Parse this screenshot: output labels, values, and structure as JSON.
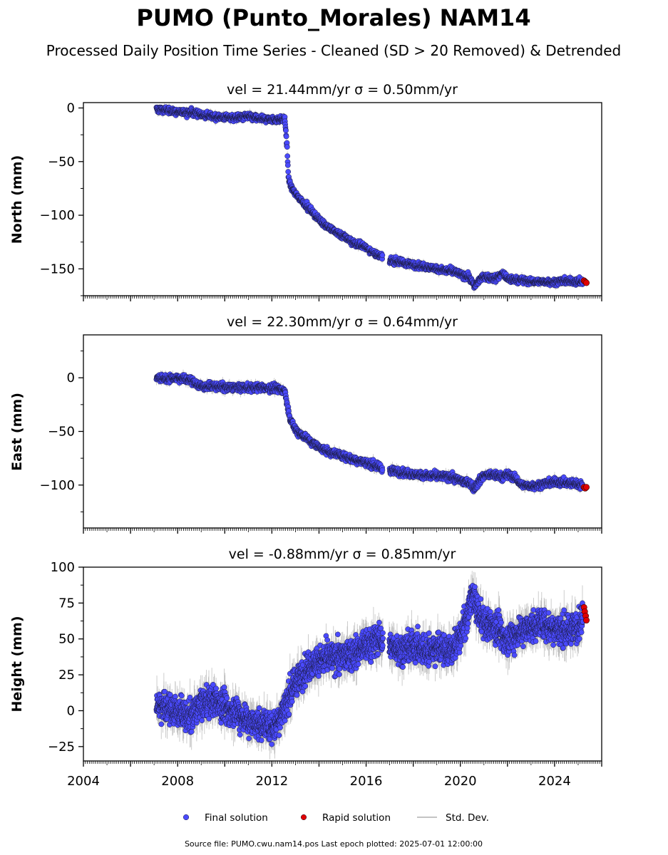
{
  "title": "PUMO (Punto_Morales) NAM14",
  "subtitle": "Processed Daily Position Time Series - Cleaned (SD > 20 Removed) & Detrended",
  "footer": "Source file: PUMO.cwu.nam14.pos  Last epoch plotted: 2025-07-01 12:00:00",
  "legend": {
    "final": "Final solution",
    "rapid": "Rapid solution",
    "std": "Std. Dev."
  },
  "colors": {
    "final": "#4a4aff",
    "final_edge": "#1a1a3a",
    "rapid": "#e00000",
    "std": "#b0b0b0"
  },
  "chart_data": [
    {
      "type": "scatter",
      "title": "vel = 21.44mm/yr   σ = 0.50mm/yr",
      "ylabel": "North (mm)",
      "ylim": [
        -175,
        5
      ],
      "yticks": [
        0,
        -50,
        -100,
        -150
      ],
      "xlim": [
        2004,
        2026
      ],
      "grid": false,
      "series": [
        {
          "name": "Final solution",
          "x": [
            2007.1,
            2007.5,
            2008.0,
            2008.5,
            2009.0,
            2009.5,
            2010.0,
            2010.5,
            2011.0,
            2011.5,
            2012.0,
            2012.3,
            2012.55,
            2012.65,
            2012.7,
            2012.8,
            2013.0,
            2013.5,
            2014.0,
            2014.5,
            2015.0,
            2015.5,
            2016.0,
            2016.5,
            2016.7,
            2017.0,
            2017.5,
            2018.0,
            2018.5,
            2019.0,
            2019.5,
            2019.8,
            2020.0,
            2020.4,
            2020.6,
            2020.8,
            2021.0,
            2021.5,
            2021.8,
            2022.0,
            2022.5,
            2023.0,
            2023.5,
            2024.0,
            2024.5,
            2025.0,
            2025.2
          ],
          "y": [
            -1,
            -2,
            -4,
            -4,
            -6,
            -8,
            -9,
            -9,
            -8,
            -10,
            -11,
            -11,
            -10,
            -38,
            -65,
            -73,
            -80,
            -92,
            -104,
            -113,
            -119,
            -126,
            -130,
            -138,
            -139,
            -142,
            -144,
            -146,
            -148,
            -150,
            -152,
            -153,
            -155,
            -158,
            -167,
            -160,
            -157,
            -159,
            -154,
            -160,
            -160,
            -162,
            -162,
            -162,
            -161,
            -162,
            -162
          ]
        },
        {
          "name": "Rapid solution",
          "x": [
            2025.25,
            2025.3,
            2025.35
          ],
          "y": [
            -161,
            -162,
            -163
          ]
        }
      ]
    },
    {
      "type": "scatter",
      "title": "vel = 22.30mm/yr   σ = 0.64mm/yr",
      "ylabel": "East (mm)",
      "ylim": [
        -140,
        40
      ],
      "yticks": [
        0,
        -50,
        -100
      ],
      "xlim": [
        2004,
        2026
      ],
      "grid": false,
      "series": [
        {
          "name": "Final solution",
          "x": [
            2007.1,
            2007.5,
            2008.0,
            2008.5,
            2009.0,
            2009.5,
            2010.0,
            2010.5,
            2011.0,
            2011.5,
            2012.0,
            2012.3,
            2012.55,
            2012.65,
            2012.8,
            2013.0,
            2013.5,
            2014.0,
            2014.5,
            2015.0,
            2015.5,
            2016.0,
            2016.5,
            2016.7,
            2017.0,
            2017.5,
            2018.0,
            2018.5,
            2019.0,
            2019.5,
            2019.8,
            2020.0,
            2020.4,
            2020.6,
            2020.8,
            2021.0,
            2021.5,
            2021.8,
            2022.0,
            2022.3,
            2022.6,
            2023.0,
            2023.5,
            2024.0,
            2024.5,
            2025.0,
            2025.2
          ],
          "y": [
            0,
            -1,
            0,
            -2,
            -8,
            -8,
            -9,
            -9,
            -9,
            -9,
            -10,
            -10,
            -11,
            -25,
            -40,
            -48,
            -57,
            -65,
            -70,
            -73,
            -76,
            -79,
            -83,
            -85,
            -86,
            -88,
            -90,
            -91,
            -92,
            -92,
            -94,
            -96,
            -98,
            -103,
            -96,
            -91,
            -91,
            -92,
            -90,
            -93,
            -100,
            -101,
            -99,
            -97,
            -98,
            -99,
            -101
          ]
        },
        {
          "name": "Rapid solution",
          "x": [
            2025.25,
            2025.3,
            2025.35
          ],
          "y": [
            -102,
            -103,
            -102
          ]
        }
      ]
    },
    {
      "type": "scatter",
      "title": "vel = -0.88mm/yr   σ = 0.85mm/yr",
      "ylabel": "Height (mm)",
      "ylim": [
        -35,
        100
      ],
      "yticks": [
        100,
        75,
        50,
        25,
        0,
        -25
      ],
      "xlim": [
        2004,
        2026
      ],
      "xticks": [
        2004,
        2008,
        2012,
        2016,
        2020,
        2024
      ],
      "grid": false,
      "series": [
        {
          "name": "Final solution",
          "x": [
            2007.1,
            2007.5,
            2008.0,
            2008.5,
            2009.0,
            2009.5,
            2010.0,
            2010.5,
            2011.0,
            2011.5,
            2012.0,
            2012.3,
            2012.6,
            2013.0,
            2013.5,
            2014.0,
            2014.5,
            2015.0,
            2015.5,
            2016.0,
            2016.5,
            2017.0,
            2017.5,
            2018.0,
            2018.5,
            2019.0,
            2019.5,
            2019.8,
            2020.0,
            2020.3,
            2020.5,
            2020.8,
            2021.0,
            2021.5,
            2022.0,
            2022.5,
            2023.0,
            2023.5,
            2024.0,
            2024.5,
            2025.0,
            2025.2
          ],
          "y": [
            5,
            2,
            0,
            -5,
            5,
            8,
            2,
            0,
            -8,
            -10,
            -12,
            -5,
            5,
            20,
            30,
            35,
            37,
            38,
            40,
            45,
            50,
            45,
            43,
            45,
            42,
            44,
            42,
            45,
            52,
            65,
            82,
            68,
            62,
            58,
            50,
            55,
            58,
            60,
            58,
            55,
            60,
            65
          ]
        },
        {
          "name": "Rapid solution",
          "x": [
            2025.25,
            2025.28,
            2025.32,
            2025.35
          ],
          "y": [
            72,
            69,
            66,
            63
          ]
        }
      ]
    }
  ]
}
